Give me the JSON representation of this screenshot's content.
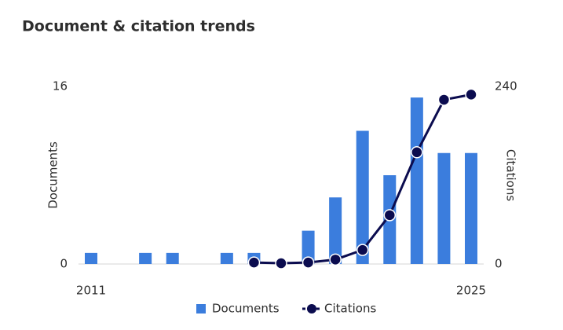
{
  "chart_data": {
    "type": "bar-line",
    "title": "Document & citation trends",
    "categories": [
      "2011",
      null,
      null,
      null,
      null,
      null,
      null,
      null,
      null,
      null,
      null,
      null,
      null,
      null,
      "2025"
    ],
    "series": [
      {
        "name": "Documents",
        "type": "bar",
        "color": "#3b7ddd",
        "axis": "y",
        "values": [
          1,
          0,
          1,
          1,
          0,
          1,
          1,
          0,
          3,
          6,
          12,
          8,
          15,
          10,
          10
        ]
      },
      {
        "name": "Citations",
        "type": "line",
        "color": "#0b0c4f",
        "axis": "y2",
        "values": [
          null,
          null,
          null,
          null,
          null,
          null,
          2,
          1,
          2,
          6,
          19,
          66,
          151,
          222,
          229
        ]
      }
    ],
    "ylabel": "Documents",
    "y2label": "Citations",
    "ylim": [
      0,
      16
    ],
    "yticks": [
      0,
      16
    ],
    "y2lim": [
      0,
      240
    ],
    "y2ticks": [
      0,
      240
    ],
    "legend": "bottom"
  }
}
